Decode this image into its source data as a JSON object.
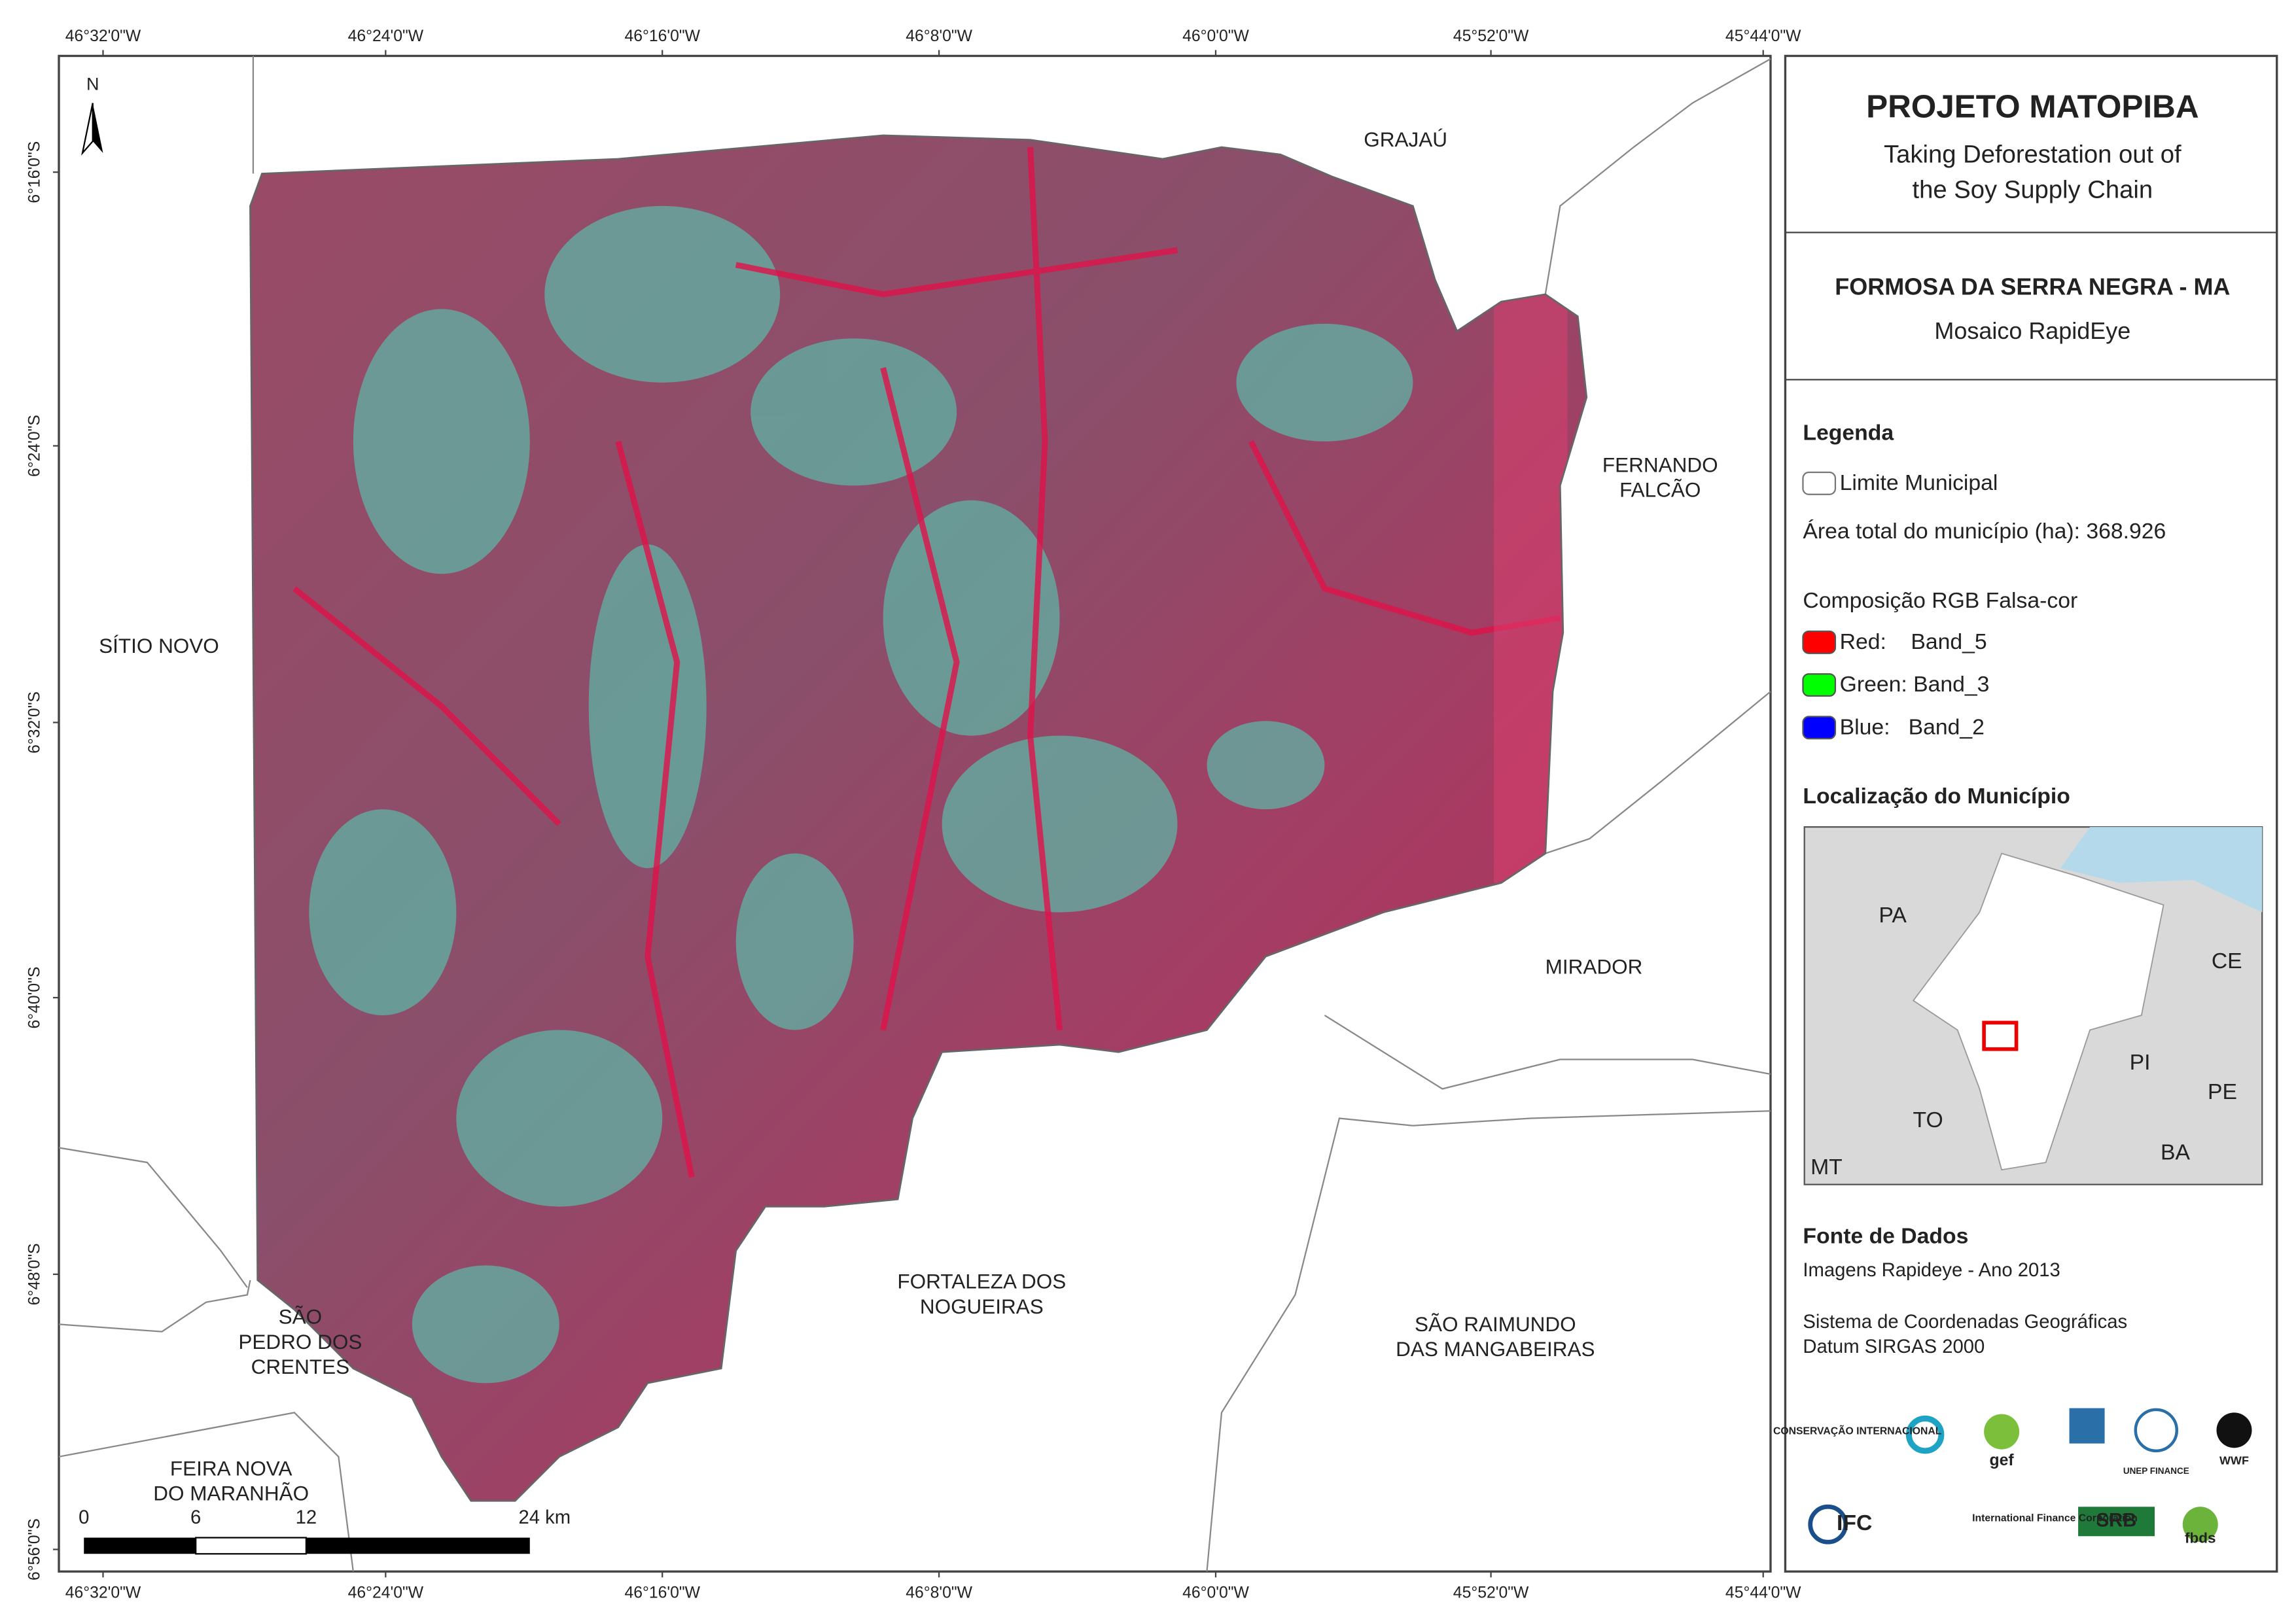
{
  "map": {
    "north_arrow": "N",
    "longitude_labels": [
      "46°32'0\"W",
      "46°24'0\"W",
      "46°16'0\"W",
      "46°8'0\"W",
      "46°0'0\"W",
      "45°52'0\"W",
      "45°44'0\"W"
    ],
    "latitude_labels": [
      "6°16'0\"S",
      "6°24'0\"S",
      "6°32'0\"S",
      "6°40'0\"S",
      "6°48'0\"S",
      "6°56'0\"S"
    ],
    "place_labels": [
      {
        "lines": [
          "GRAJAÚ"
        ]
      },
      {
        "lines": [
          "FERNANDO",
          "FALCÃO"
        ]
      },
      {
        "lines": [
          "SÍTIO NOVO"
        ]
      },
      {
        "lines": [
          "MIRADOR"
        ]
      },
      {
        "lines": [
          "FORTALEZA DOS",
          "NOGUEIRAS"
        ]
      },
      {
        "lines": [
          "SÃO",
          "PEDRO DOS",
          "CRENTES"
        ]
      },
      {
        "lines": [
          "SÃO RAIMUNDO",
          "DAS MANGABEIRAS"
        ]
      },
      {
        "lines": [
          "FEIRA NOVA",
          "DO MARANHÃO"
        ]
      }
    ],
    "scale_bar": {
      "labels": [
        "0",
        "6",
        "12",
        "24 km"
      ]
    }
  },
  "panel": {
    "title": "PROJETO MATOPIBA",
    "subtitle": [
      "Taking Deforestation out of",
      "the Soy Supply Chain"
    ],
    "map_title": "FORMOSA DA SERRA NEGRA - MA",
    "map_subtitle": "Mosaico RapidEye",
    "legend": {
      "title": "Legenda",
      "boundary": "Limite Municipal",
      "area": "Área total do município (ha): 368.926",
      "composition": "Composição RGB Falsa-cor",
      "bands": [
        {
          "label": "Red:    Band_5",
          "color": "#ff0000"
        },
        {
          "label": "Green: Band_3",
          "color": "#00ff00"
        },
        {
          "label": "Blue:   Band_2",
          "color": "#0000ff"
        }
      ]
    },
    "location": {
      "title": "Localização do Município",
      "labels": [
        "PA",
        "CE",
        "PI",
        "TO",
        "PE",
        "BA",
        "MT"
      ]
    },
    "sources": {
      "title": "Fonte de Dados",
      "lines": [
        "Imagens Rapideye - Ano 2013",
        "Sistema de Coordenadas Geográficas",
        "Datum SIRGAS 2000"
      ]
    },
    "logos": [
      "CONSERVAÇÃO INTERNACIONAL",
      "gef",
      "UNEP FINANCE",
      "WWF",
      "IFC",
      "International Finance Corporation",
      "SRB",
      "fbds"
    ]
  }
}
